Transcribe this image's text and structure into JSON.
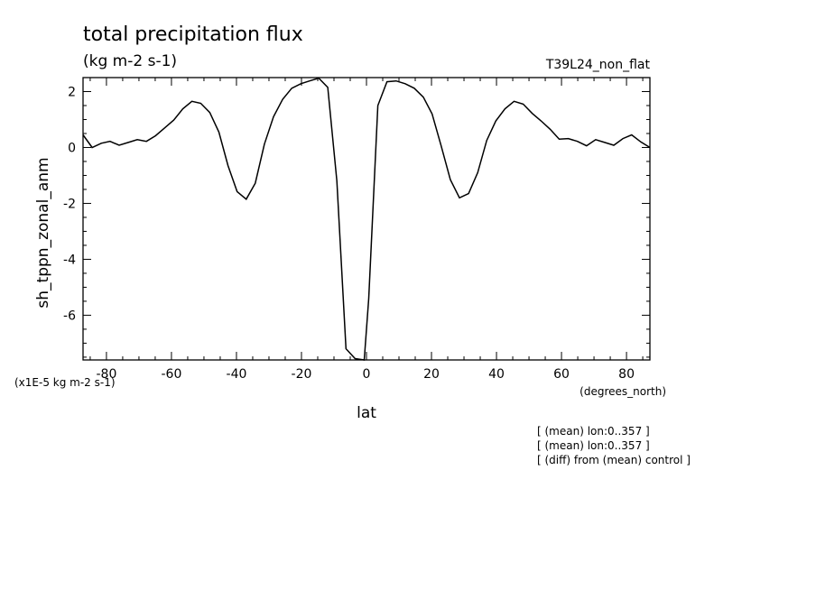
{
  "chart_data": {
    "type": "line",
    "title": "total precipitation flux",
    "subtitle": "(kg m-2 s-1)",
    "run_label": "T39L24_non_flat",
    "xlabel": "lat",
    "x_units": "(degrees_north)",
    "ylabel": "sh_tppn_zonal_anm",
    "y_scale_note": "(x1E-5 kg m-2 s-1)",
    "xlim": [
      -87.2,
      87.2
    ],
    "ylim": [
      -7.6,
      2.5
    ],
    "x_ticks": [
      -80,
      -60,
      -40,
      -20,
      0,
      20,
      40,
      60,
      80
    ],
    "x_tick_labels": [
      "-80",
      "-60",
      "-40",
      "-20",
      "0",
      "20",
      "40",
      "60",
      "80"
    ],
    "y_ticks": [
      -6,
      -4,
      -2,
      0,
      2
    ],
    "y_tick_labels": [
      "-6",
      "-4",
      "-2",
      "0",
      "2"
    ],
    "grid": false,
    "series": [
      {
        "x": [
          -87.2,
          -84.4,
          -81.6,
          -78.9,
          -76.1,
          -73.3,
          -70.5,
          -67.7,
          -64.9,
          -62.1,
          -59.3,
          -56.5,
          -53.7,
          -51.0,
          -48.2,
          -45.4,
          -42.6,
          -39.8,
          -37.0,
          -34.2,
          -31.4,
          -28.6,
          -25.8,
          -23.0,
          -20.2,
          -17.5,
          -14.7,
          -11.9,
          -9.1,
          -6.3,
          -3.5,
          -0.7,
          0.7,
          3.5,
          6.3,
          9.1,
          11.9,
          14.7,
          17.5,
          20.2,
          23.0,
          25.8,
          28.6,
          31.4,
          34.2,
          37.0,
          39.8,
          42.6,
          45.4,
          48.2,
          51.0,
          53.7,
          56.5,
          59.3,
          62.1,
          64.9,
          67.7,
          70.5,
          73.3,
          76.1,
          78.9,
          81.6,
          84.4,
          87.2
        ],
        "values": [
          0.45,
          0.0,
          0.15,
          0.22,
          0.08,
          0.18,
          0.28,
          0.22,
          0.42,
          0.7,
          0.98,
          1.38,
          1.65,
          1.58,
          1.25,
          0.55,
          -0.65,
          -1.58,
          -1.85,
          -1.28,
          0.12,
          1.1,
          1.72,
          2.12,
          2.28,
          2.38,
          2.48,
          2.15,
          -1.2,
          -7.2,
          -7.55,
          -7.6,
          -5.4,
          1.5,
          2.35,
          2.38,
          2.28,
          2.12,
          1.8,
          1.2,
          0.05,
          -1.15,
          -1.8,
          -1.65,
          -0.9,
          0.25,
          0.95,
          1.38,
          1.65,
          1.55,
          1.22,
          0.95,
          0.65,
          0.3,
          0.32,
          0.22,
          0.06,
          0.28,
          0.18,
          0.08,
          0.32,
          0.45,
          0.2,
          0.0
        ]
      }
    ],
    "annotations": [
      "[ (mean) lon:0..357 ]",
      "[ (mean) lon:0..357 ]",
      "[ (diff) from (mean) control ]"
    ]
  }
}
